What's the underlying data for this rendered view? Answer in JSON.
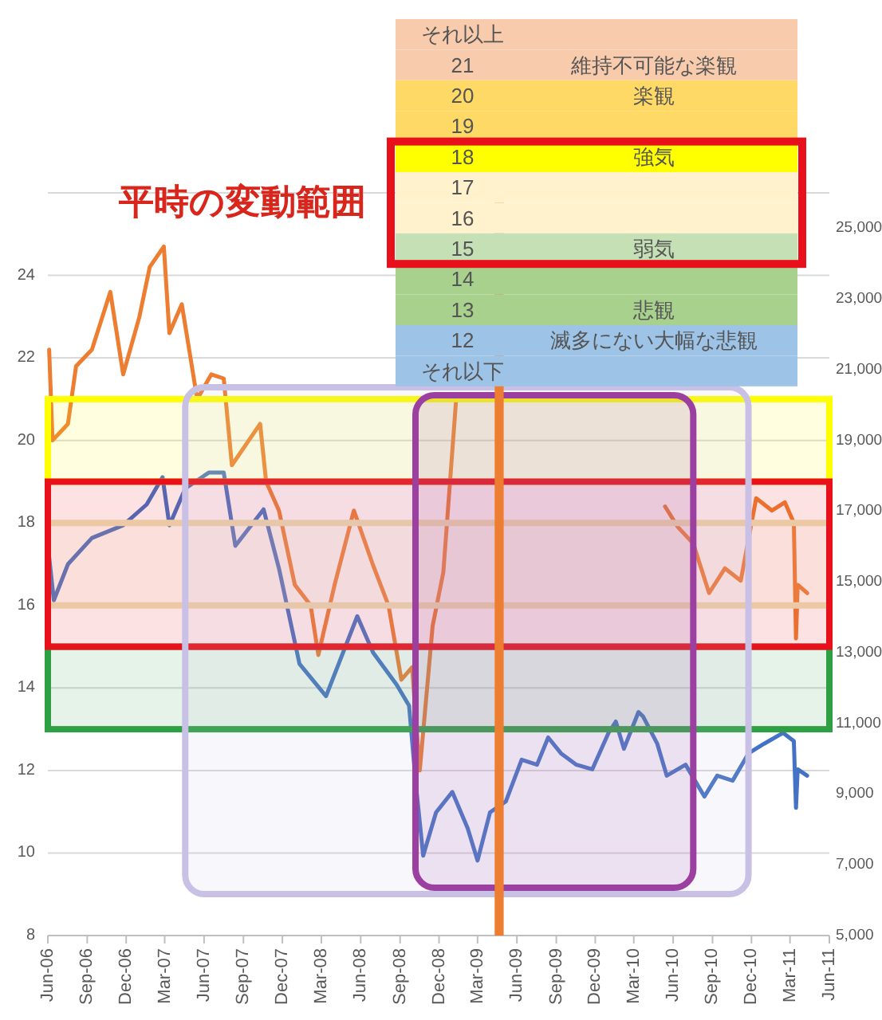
{
  "chart_data": [
    {
      "type": "line",
      "title": "平時の変動範囲",
      "xlim": [
        "2006-06-01",
        "2011-06-01"
      ],
      "ylim": [
        8,
        26
      ],
      "y2lim": [
        5000,
        26000
      ],
      "grid": "y",
      "yticks": [
        8,
        10,
        12,
        14,
        16,
        18,
        20,
        22,
        24
      ],
      "y2ticks": [
        {
          "value": 5000,
          "label": "5,000"
        },
        {
          "value": 7000,
          "label": "7,000"
        },
        {
          "value": 9000,
          "label": "9,000"
        },
        {
          "value": 11000,
          "label": "11,000"
        },
        {
          "value": 13000,
          "label": "13,000"
        },
        {
          "value": 15000,
          "label": "15,000"
        },
        {
          "value": 17000,
          "label": "17,000"
        },
        {
          "value": 19000,
          "label": "19,000"
        },
        {
          "value": 21000,
          "label": "21,000"
        },
        {
          "value": 23000,
          "label": "23,000"
        },
        {
          "value": 25000,
          "label": "25,000"
        }
      ],
      "xticks": [
        {
          "value": "2006-06",
          "label": "Jun-06"
        },
        {
          "value": "2006-09",
          "label": "Sep-06"
        },
        {
          "value": "2006-12",
          "label": "Dec-06"
        },
        {
          "value": "2007-03",
          "label": "Mar-07"
        },
        {
          "value": "2007-06",
          "label": "Jun-07"
        },
        {
          "value": "2007-09",
          "label": "Sep-07"
        },
        {
          "value": "2007-12",
          "label": "Dec-07"
        },
        {
          "value": "2008-03",
          "label": "Mar-08"
        },
        {
          "value": "2008-06",
          "label": "Jun-08"
        },
        {
          "value": "2008-09",
          "label": "Sep-08"
        },
        {
          "value": "2008-12",
          "label": "Dec-08"
        },
        {
          "value": "2009-03",
          "label": "Mar-09"
        },
        {
          "value": "2009-06",
          "label": "Jun-09"
        },
        {
          "value": "2009-09",
          "label": "Sep-09"
        },
        {
          "value": "2009-12",
          "label": "Dec-09"
        },
        {
          "value": "2010-03",
          "label": "Mar-10"
        },
        {
          "value": "2010-06",
          "label": "Jun-10"
        },
        {
          "value": "2010-09",
          "label": "Sep-10"
        },
        {
          "value": "2010-12",
          "label": "Dec-10"
        },
        {
          "value": "2011-03",
          "label": "Mar-11"
        },
        {
          "value": "2011-06",
          "label": "Jun-11"
        }
      ],
      "series": [
        {
          "color": "#ed7d31",
          "x": [
            "2006-06-04",
            "2006-06-12",
            "2006-07-18",
            "2006-08-06",
            "2006-09-12",
            "2006-10-25",
            "2006-11-24",
            "2007-01-01",
            "2007-01-25",
            "2007-02-27",
            "2007-03-12",
            "2007-04-10",
            "2007-05-16",
            "2007-06-18",
            "2007-07-17",
            "2007-08-05",
            "2007-10-10",
            "2007-10-24",
            "2007-11-23",
            "2007-12-30",
            "2008-02-05",
            "2008-02-23",
            "2008-04-01",
            "2008-05-16",
            "2008-06-29",
            "2008-08-05",
            "2008-09-04",
            "2008-09-29",
            "2008-10-17",
            "2008-11-16",
            "2008-12-11",
            "2009-01-10",
            "2009-01-25",
            "2010-04-28",
            "2010-05-13",
            "2010-06-12",
            "2010-07-18",
            "2010-08-24",
            "2010-09-30",
            "2010-11-06",
            "2010-12-12",
            "2011-01-18",
            "2011-02-17",
            "2011-03-10",
            "2011-03-15",
            "2011-03-19",
            "2011-04-10"
          ],
          "values": [
            22.2,
            20.0,
            20.4,
            21.8,
            22.2,
            23.6,
            21.6,
            23.0,
            24.2,
            24.7,
            22.6,
            23.3,
            21.0,
            21.6,
            21.5,
            19.4,
            20.4,
            19.0,
            18.3,
            16.5,
            16.0,
            14.8,
            16.5,
            18.3,
            17.0,
            16.0,
            14.2,
            14.5,
            12.0,
            15.5,
            16.8,
            21.0,
            null,
            null,
            18.4,
            17.9,
            17.5,
            16.3,
            16.9,
            16.6,
            18.6,
            18.3,
            18.5,
            18.0,
            15.2,
            16.5,
            16.3
          ]
        },
        {
          "color": "#4472c4",
          "axis": "y2",
          "x": [
            "2006-06-04",
            "2006-06-15",
            "2006-07-18",
            "2006-09-12",
            "2006-11-24",
            "2007-01-18",
            "2007-02-24",
            "2007-03-12",
            "2007-04-18",
            "2007-06-12",
            "2007-07-17",
            "2007-08-13",
            "2007-10-18",
            "2007-11-23",
            "2008-01-10",
            "2008-03-12",
            "2008-05-24",
            "2008-06-30",
            "2008-08-24",
            "2008-09-22",
            "2008-10-07",
            "2008-10-25",
            "2008-11-24",
            "2009-01-01",
            "2009-02-06",
            "2009-03-01",
            "2009-03-30",
            "2009-05-06",
            "2009-06-12",
            "2009-07-18",
            "2009-08-13",
            "2009-09-12",
            "2009-10-18",
            "2009-11-24",
            "2010-01-01",
            "2010-01-18",
            "2010-02-06",
            "2010-03-12",
            "2010-03-23",
            "2010-04-25",
            "2010-05-17",
            "2010-06-30",
            "2010-08-13",
            "2010-09-12",
            "2010-10-18",
            "2010-11-24",
            "2010-12-30",
            "2011-02-13",
            "2011-03-10",
            "2011-03-15",
            "2011-03-19",
            "2011-04-10"
          ],
          "values": [
            15700,
            14480,
            15500,
            16240,
            16600,
            17190,
            17960,
            16600,
            17640,
            18090,
            18090,
            16020,
            17050,
            15380,
            12680,
            11770,
            14030,
            13000,
            12090,
            11500,
            9380,
            7260,
            8480,
            9060,
            8030,
            7120,
            8480,
            8790,
            9970,
            9830,
            10600,
            10150,
            9830,
            9700,
            10730,
            11050,
            10280,
            11320,
            11190,
            10420,
            9520,
            9830,
            8930,
            9520,
            9380,
            10150,
            10420,
            10730,
            10500,
            8610,
            9700,
            9520
          ]
        }
      ],
      "bands": [
        {
          "axis": "y",
          "from": 19,
          "to": 21,
          "color": "#ffff00"
        },
        {
          "axis": "y",
          "from": 16,
          "to": 18,
          "color": "#ede3b8"
        },
        {
          "axis": "y",
          "from": 13,
          "to": 15,
          "color": "#2ea043"
        },
        {
          "axis": "y",
          "from": 15,
          "to": 19,
          "color": "#e8101a"
        },
        {
          "axis": "x",
          "from": "2007-04-18",
          "to": "2010-11-24",
          "color": "#c9c0e6"
        },
        {
          "axis": "x",
          "from": "2008-10-07",
          "to": "2010-07-18",
          "color": "#9b3fa0"
        },
        {
          "axis": "x",
          "from": "2009-04-10",
          "to": "2009-05-01",
          "color": "#ed7d31"
        }
      ]
    },
    {
      "type": "heatmap",
      "categories": [
        null
      ],
      "y_categories": [
        "それ以上",
        "21",
        "20",
        "19",
        "18",
        "17",
        "16",
        "15",
        "14",
        "13",
        "12",
        "それ以下"
      ],
      "y2_categories": [
        null,
        "維持不可能な楽観",
        "楽観",
        null,
        "強気",
        null,
        null,
        "弱気",
        null,
        "悲観",
        "滅多にない大幅な悲観",
        null
      ],
      "cells": [
        [
          null
        ],
        [
          null
        ],
        [
          null
        ],
        [
          null
        ],
        [
          null
        ],
        [
          null
        ],
        [
          null
        ],
        [
          null
        ],
        [
          null
        ],
        [
          null
        ],
        [
          null
        ],
        [
          null
        ]
      ],
      "colors": [
        "#f8cbad",
        "#f8cbad",
        "#ffd966",
        "#ffd966",
        "#ffff00",
        "#fff2cc",
        "#fff2cc",
        "#c5e0b4",
        "#a9d18e",
        "#a9d18e",
        "#9dc3e6",
        "#9dc3e6"
      ]
    }
  ]
}
